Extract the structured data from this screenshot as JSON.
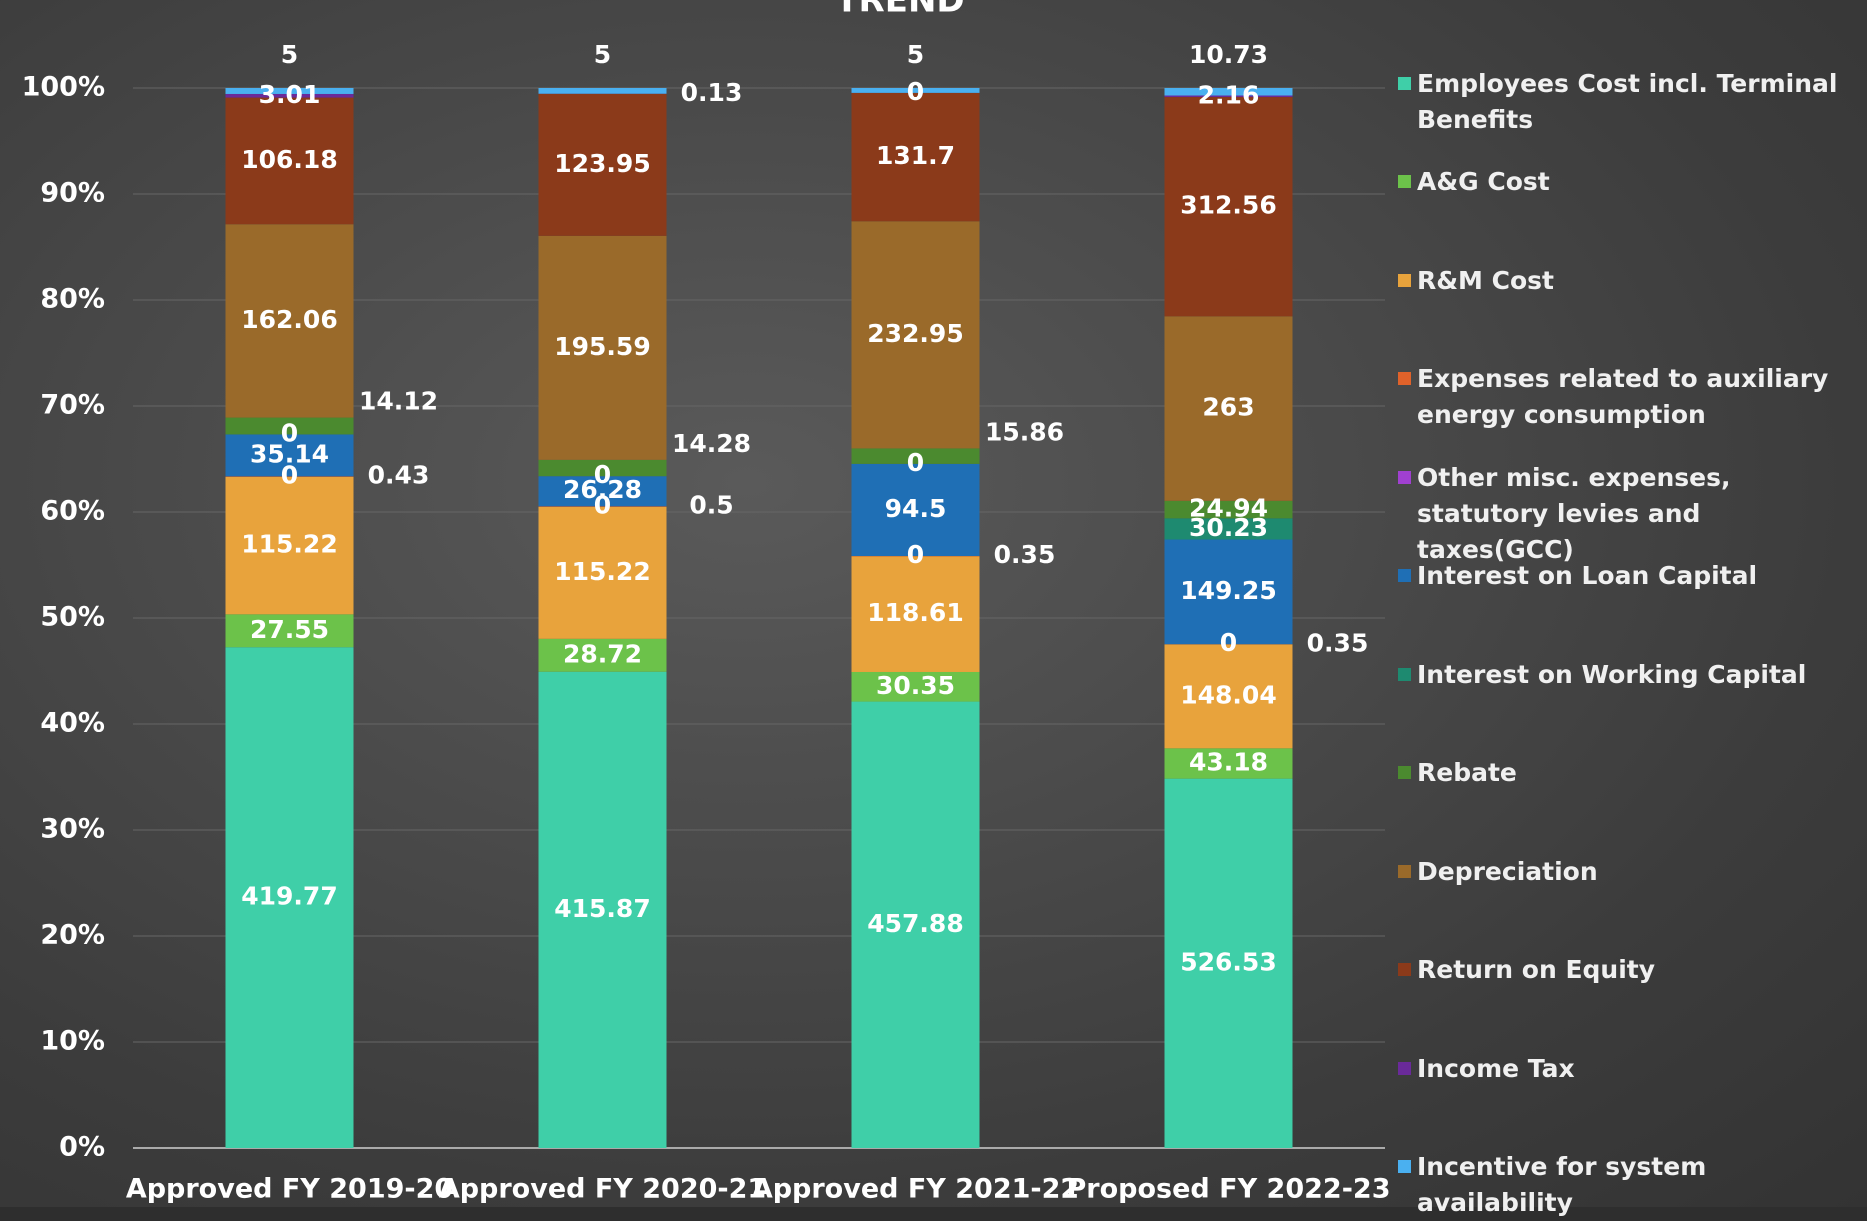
{
  "chart_data": {
    "type": "stacked_percent_bar",
    "title": "TREND",
    "categories": [
      "Approved FY 2019-20",
      "Approved FY 2020-21",
      "Approved FY 2021-22",
      "Proposed FY 2022-23"
    ],
    "series": [
      {
        "name": "Employees Cost incl. Terminal Benefits",
        "color": "#3fcfa8",
        "label_color": "#000000",
        "values": [
          419.77,
          415.87,
          457.88,
          526.53
        ]
      },
      {
        "name": "A&G Cost",
        "color": "#6cc24a",
        "label_color": "#000000",
        "values": [
          27.55,
          28.72,
          30.35,
          43.18
        ]
      },
      {
        "name": "R&M Cost",
        "color": "#e8a33c",
        "label_color": "#000000",
        "values": [
          115.22,
          115.22,
          118.61,
          148.04
        ]
      },
      {
        "name": "Expenses related  to auxiliary energy consumption",
        "color": "#e0622a",
        "label_color": "#ffffff",
        "values": [
          0.43,
          0.5,
          0.35,
          0.35
        ]
      },
      {
        "name": "Other misc. expenses, statutory levies and taxes(GCC)",
        "color": "#a040d0",
        "label_color": "#000000",
        "values": [
          0,
          0,
          0,
          0
        ]
      },
      {
        "name": "Interest on Loan Capital",
        "color": "#1f6fb5",
        "label_color": "#ffffff",
        "values": [
          35.14,
          26.28,
          94.5,
          149.25
        ]
      },
      {
        "name": "Interest on Working Capital",
        "color": "#1e8a70",
        "label_color": "#000000",
        "values": [
          0,
          0,
          0,
          30.23
        ]
      },
      {
        "name": "Rebate",
        "color": "#4b8a2f",
        "label_color": "#ffffff",
        "values": [
          14.12,
          14.28,
          15.86,
          24.94
        ]
      },
      {
        "name": "Depreciation",
        "color": "#9a6a2a",
        "label_color": "#ffffff",
        "values": [
          162.06,
          195.59,
          232.95,
          263
        ]
      },
      {
        "name": "Return on Equity",
        "color": "#8b3a1a",
        "label_color": "#ffffff",
        "values": [
          106.18,
          123.95,
          131.7,
          312.56
        ]
      },
      {
        "name": "Income Tax",
        "color": "#6a2a9a",
        "label_color": "#ffffff",
        "values": [
          3.01,
          0.13,
          0,
          2.16
        ]
      },
      {
        "name": "Incentive for system availability",
        "color": "#4ab0f0",
        "label_color": "#ffffff",
        "values": [
          5,
          5,
          5,
          10.73
        ]
      }
    ],
    "ylim": [
      0,
      100
    ],
    "yticks": [
      {
        "value": 0,
        "label": "0%"
      },
      {
        "value": 10,
        "label": "10%"
      },
      {
        "value": 20,
        "label": "20%"
      },
      {
        "value": 30,
        "label": "30%"
      },
      {
        "value": 40,
        "label": "40%"
      },
      {
        "value": 50,
        "label": "50%"
      },
      {
        "value": 60,
        "label": "60%"
      },
      {
        "value": 70,
        "label": "70%"
      },
      {
        "value": 80,
        "label": "80%"
      },
      {
        "value": 90,
        "label": "90%"
      },
      {
        "value": 100,
        "label": "100%"
      }
    ],
    "grid": true,
    "legend": "right"
  }
}
